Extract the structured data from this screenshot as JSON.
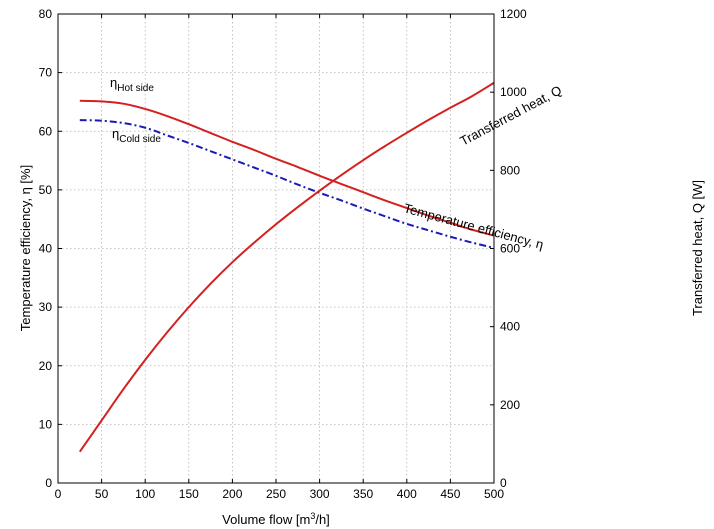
{
  "chart_data": {
    "type": "line",
    "xlabel": "Volume flow [m3/h]",
    "xlabel_parts": {
      "base": "Volume flow [m",
      "sup": "3",
      "end": "/h]"
    },
    "ylabel_left": "Temperature efficiency, η [%]",
    "ylabel_right": "Transferred heat, Q [W]",
    "xlim": [
      0,
      500
    ],
    "ylim_left": [
      0,
      80
    ],
    "ylim_right": [
      0,
      1200
    ],
    "xticks": [
      0,
      50,
      100,
      150,
      200,
      250,
      300,
      350,
      400,
      450,
      500
    ],
    "yticks_left": [
      0,
      10,
      20,
      30,
      40,
      50,
      60,
      70,
      80
    ],
    "yticks_right": [
      0,
      200,
      400,
      600,
      800,
      1000,
      1200
    ],
    "grid": true,
    "series": [
      {
        "axis": "left",
        "color": "#d42020",
        "style": "solid",
        "x": [
          25,
          50,
          75,
          100,
          125,
          150,
          175,
          200,
          225,
          250,
          275,
          300,
          325,
          350,
          375,
          400,
          425,
          450,
          475,
          500
        ],
        "y": [
          65.2,
          65.1,
          64.7,
          63.8,
          62.6,
          61.2,
          59.7,
          58.2,
          56.8,
          55.3,
          53.9,
          52.4,
          51.0,
          49.6,
          48.2,
          46.9,
          45.6,
          44.4,
          43.2,
          42.2
        ]
      },
      {
        "axis": "left",
        "color": "#1a1ab8",
        "style": "dashdot",
        "x": [
          25,
          50,
          75,
          100,
          125,
          150,
          175,
          200,
          225,
          250,
          275,
          300,
          325,
          350,
          375,
          400,
          425,
          450,
          475,
          500
        ],
        "y": [
          61.9,
          61.8,
          61.4,
          60.6,
          59.3,
          58.0,
          56.6,
          55.2,
          53.8,
          52.4,
          50.9,
          49.5,
          48.2,
          46.8,
          45.5,
          44.2,
          43.1,
          42.0,
          41.0,
          40.1
        ]
      },
      {
        "axis": "right",
        "color": "#d42020",
        "style": "solid",
        "x": [
          25,
          50,
          75,
          100,
          125,
          150,
          175,
          200,
          225,
          250,
          275,
          300,
          325,
          350,
          375,
          400,
          425,
          450,
          475,
          500
        ],
        "y": [
          80,
          160,
          240,
          315,
          385,
          450,
          510,
          565,
          615,
          662,
          706,
          748,
          788,
          826,
          862,
          896,
          929,
          960,
          990,
          1024
        ]
      }
    ],
    "annotations": {
      "eta_hot": {
        "base": "η",
        "sub": "Hot side"
      },
      "eta_cold": {
        "base": "η",
        "sub": "Cold side"
      },
      "heat": "Transferred heat,  Q",
      "efficiency": "Temperature efficiency,   η"
    }
  }
}
